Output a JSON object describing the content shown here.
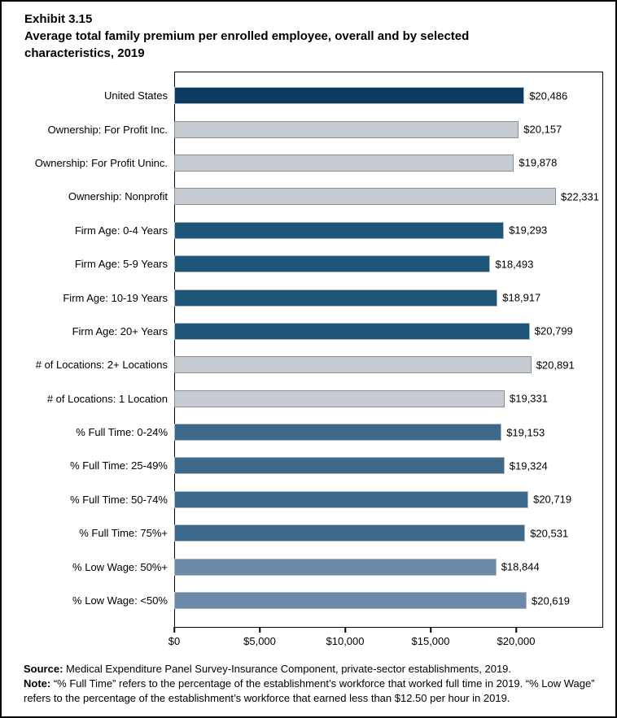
{
  "title": {
    "exhibit": "Exhibit 3.15",
    "subtitle": "Average total family premium per enrolled employee, overall and by selected characteristics, 2019"
  },
  "chart_data": {
    "type": "bar",
    "orientation": "horizontal",
    "title": "Average total family premium per enrolled employee, overall and by selected characteristics, 2019",
    "xlabel": "",
    "ylabel": "",
    "xlim": [
      0,
      25000
    ],
    "grid": false,
    "legend": false,
    "x_ticks": [
      {
        "value": 0,
        "label": "$0"
      },
      {
        "value": 5000,
        "label": "$5,000"
      },
      {
        "value": 10000,
        "label": "$10,000"
      },
      {
        "value": 15000,
        "label": "$15,000"
      },
      {
        "value": 20000,
        "label": "$20,000"
      }
    ],
    "bars": [
      {
        "category": "United States",
        "value": 20486,
        "label": "$20,486",
        "color_group": "navy"
      },
      {
        "category": "Ownership: For Profit Inc.",
        "value": 20157,
        "label": "$20,157",
        "color_group": "gray"
      },
      {
        "category": "Ownership: For Profit Uninc.",
        "value": 19878,
        "label": "$19,878",
        "color_group": "gray"
      },
      {
        "category": "Ownership: Nonprofit",
        "value": 22331,
        "label": "$22,331",
        "color_group": "gray"
      },
      {
        "category": "Firm Age: 0-4 Years",
        "value": 19293,
        "label": "$19,293",
        "color_group": "blue_dark"
      },
      {
        "category": "Firm Age: 5-9 Years",
        "value": 18493,
        "label": "$18,493",
        "color_group": "blue_dark"
      },
      {
        "category": "Firm Age: 10-19 Years",
        "value": 18917,
        "label": "$18,917",
        "color_group": "blue_dark"
      },
      {
        "category": "Firm Age: 20+ Years",
        "value": 20799,
        "label": "$20,799",
        "color_group": "blue_dark"
      },
      {
        "category": "# of Locations: 2+ Locations",
        "value": 20891,
        "label": "$20,891",
        "color_group": "gray"
      },
      {
        "category": "# of Locations: 1 Location",
        "value": 19331,
        "label": "$19,331",
        "color_group": "gray"
      },
      {
        "category": "% Full Time: 0-24%",
        "value": 19153,
        "label": "$19,153",
        "color_group": "blue_mid"
      },
      {
        "category": "% Full Time: 25-49%",
        "value": 19324,
        "label": "$19,324",
        "color_group": "blue_mid"
      },
      {
        "category": "% Full Time: 50-74%",
        "value": 20719,
        "label": "$20,719",
        "color_group": "blue_mid"
      },
      {
        "category": "% Full Time: 75%+",
        "value": 20531,
        "label": "$20,531",
        "color_group": "blue_mid"
      },
      {
        "category": "% Low Wage: 50%+",
        "value": 18844,
        "label": "$18,844",
        "color_group": "blue_light"
      },
      {
        "category": "% Low Wage: <50%",
        "value": 20619,
        "label": "$20,619",
        "color_group": "blue_light"
      }
    ],
    "colors": {
      "navy": {
        "fill": "#0C3A61",
        "border": "#AEB9C2"
      },
      "gray": {
        "fill": "#C6CCD2",
        "border": "#878E95"
      },
      "blue_dark": {
        "fill": "#20557A",
        "border": "#AEB9C2"
      },
      "blue_mid": {
        "fill": "#3D698C",
        "border": "#AEB9C2"
      },
      "blue_light": {
        "fill": "#6C8BA8",
        "border": "#AEB9C2"
      }
    }
  },
  "footer": {
    "source_label": "Source:",
    "source_text": " Medical Expenditure Panel Survey-Insurance Component, private-sector establishments, 2019.",
    "note_label": "Note:",
    "note_text": " “% Full Time” refers to the percentage of the establishment’s workforce that worked full time in 2019. “% Low Wage” refers to the percentage of the establishment’s workforce that earned less than $12.50 per hour in 2019."
  }
}
